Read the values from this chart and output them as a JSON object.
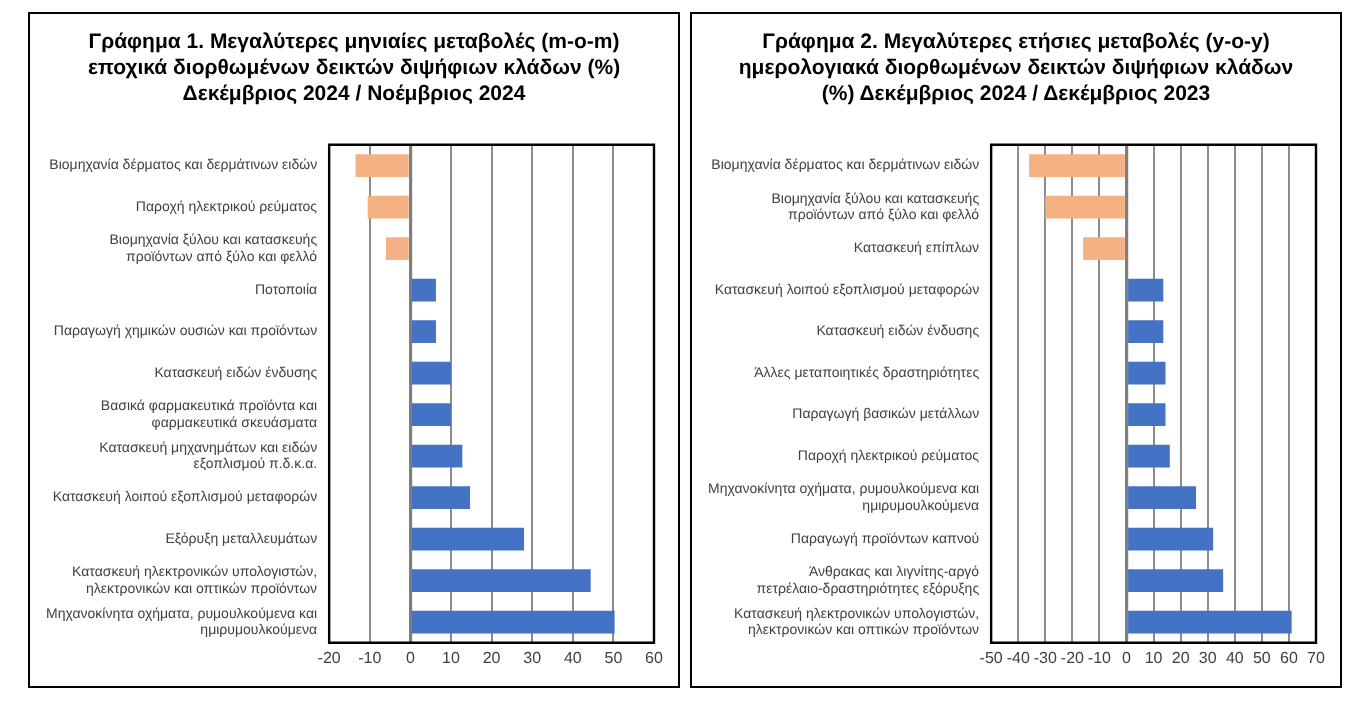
{
  "chart_data": [
    {
      "type": "bar",
      "orientation": "horizontal",
      "title": "Γράφημα 1. Μεγαλύτερες μηνιαίες μεταβολές (m-o-m) εποχικά διορθωμένων δεικτών διψήφιων κλάδων (%) Δεκέμβριος 2024 / Νοέμβριος 2024",
      "categories": [
        "Βιομηχανία δέρματος και δερμάτινων ειδών",
        "Παροχή ηλεκτρικού ρεύματος",
        "Βιομηχανία ξύλου και κατασκευής προϊόντων από ξύλο και φελλό",
        "Ποτοποιία",
        "Παραγωγή χημικών ουσιών και προϊόντων",
        "Κατασκευή ειδών ένδυσης",
        "Βασικά φαρμακευτικά προϊόντα και φαρμακευτικά σκευάσματα",
        "Κατασκευή μηχανημάτων και ειδών εξοπλισμού π.δ.κ.α.",
        "Κατασκευή λοιπού εξοπλισμού μεταφορών",
        "Εξόρυξη μεταλλευμάτων",
        "Κατασκευή ηλεκτρονικών υπολογιστών, ηλεκτρονικών και οπτικών προϊόντων",
        "Μηχανοκίνητα οχήματα, ρυμουλκούμενα και ημιρυμουλκούμενα"
      ],
      "values": [
        -13.5,
        -10.5,
        -6,
        6.3,
        6.3,
        10,
        10,
        12.8,
        14.7,
        28,
        44.4,
        50.3
      ],
      "colors": [
        "#f4b183",
        "#f4b183",
        "#f4b183",
        "#4472c4",
        "#4472c4",
        "#4472c4",
        "#4472c4",
        "#4472c4",
        "#4472c4",
        "#4472c4",
        "#4472c4",
        "#4472c4"
      ],
      "xlim": [
        -20,
        60
      ],
      "xticks": [
        -20,
        -10,
        0,
        10,
        20,
        30,
        40,
        50,
        60
      ],
      "grid": "x",
      "legend": false
    },
    {
      "type": "bar",
      "orientation": "horizontal",
      "title": "Γράφημα 2. Μεγαλύτερες ετήσιες μεταβολές (y-o-y) ημερολογιακά διορθωμένων δεικτών διψήφιων κλάδων (%) Δεκέμβριος 2024 / Δεκέμβριος 2023",
      "categories": [
        "Βιομηχανία δέρματος και δερμάτινων ειδών",
        "Βιομηχανία ξύλου και κατασκευής προϊόντων από ξύλο και φελλό",
        "Κατασκευή επίπλων",
        "Κατασκευή λοιπού εξοπλισμού μεταφορών",
        "Κατασκευή ειδών ένδυσης",
        "Άλλες μεταποιητικές δραστηριότητες",
        "Παραγωγή βασικών μετάλλων",
        "Παροχή ηλεκτρικού ρεύματος",
        "Μηχανοκίνητα οχήματα, ρυμουλκούμενα και ημιρυμουλκούμενα",
        "Παραγωγή προϊόντων καπνού",
        "Άνθρακας και λιγνίτης-αργό πετρέλαιο-δραστηριότητες εξόρυξης",
        "Κατασκευή ηλεκτρονικών υπολογιστών, ηλεκτρονικών και οπτικών προϊόντων"
      ],
      "values": [
        -36,
        -30,
        -16,
        13.6,
        13.6,
        14.4,
        14.4,
        16,
        25.7,
        32,
        35.7,
        61
      ],
      "colors": [
        "#f4b183",
        "#f4b183",
        "#f4b183",
        "#4472c4",
        "#4472c4",
        "#4472c4",
        "#4472c4",
        "#4472c4",
        "#4472c4",
        "#4472c4",
        "#4472c4",
        "#4472c4"
      ],
      "xlim": [
        -50,
        70
      ],
      "xticks": [
        -50,
        -40,
        -30,
        -20,
        -10,
        0,
        10,
        20,
        30,
        40,
        50,
        60,
        70
      ],
      "grid": "x",
      "legend": false
    }
  ]
}
